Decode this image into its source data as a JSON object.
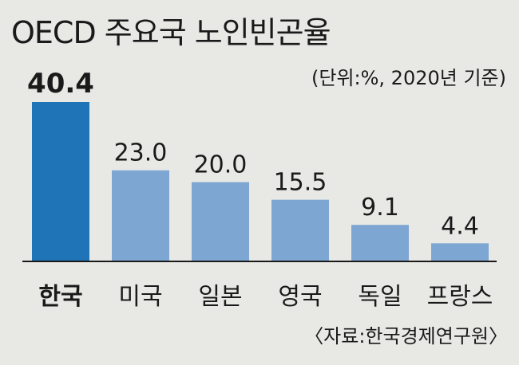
{
  "chart_data": {
    "type": "bar",
    "title": "OECD 주요국 노인빈곤율",
    "unit_note": "(단위:%, 2020년 기준)",
    "source": "〈자료:한국경제연구원〉",
    "categories": [
      "한국",
      "미국",
      "일본",
      "영국",
      "독일",
      "프랑스"
    ],
    "values": [
      40.4,
      23.0,
      20.0,
      15.5,
      9.1,
      4.4
    ],
    "value_labels": [
      "40.4",
      "23.0",
      "20.0",
      "15.5",
      "9.1",
      "4.4"
    ],
    "highlight_index": 0,
    "colors": {
      "highlight": "#1f74b8",
      "bar": "#7ea6d3",
      "background": "#e8e9e4",
      "baseline": "#1a1a1a"
    },
    "ylim": [
      0,
      40.4
    ],
    "legend": "none",
    "grid": false
  }
}
